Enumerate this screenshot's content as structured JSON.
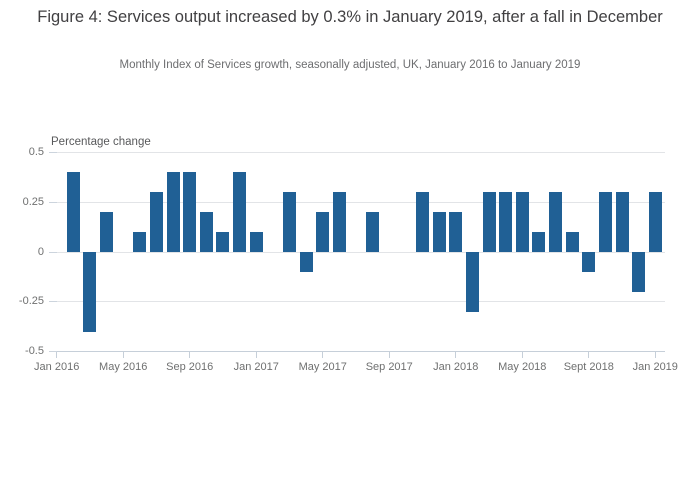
{
  "header": {
    "title": "Figure 4: Services output increased by 0.3% in January 2019, after a fall in December",
    "subtitle": "Monthly Index of Services growth, seasonally adjusted, UK, January 2016 to January 2019"
  },
  "chart_data": {
    "type": "bar",
    "title": "Figure 4: Services output increased by 0.3% in January 2019, after a fall in December",
    "subtitle": "Monthly Index of Services growth, seasonally adjusted, UK, January 2016 to January 2019",
    "ylabel": "Percentage change",
    "xlabel": "",
    "ylim": [
      -0.5,
      0.5
    ],
    "grid": true,
    "legend": "none",
    "bar_color": "#206095",
    "categories": [
      "Jan 2016",
      "Feb 2016",
      "Mar 2016",
      "Apr 2016",
      "May 2016",
      "Jun 2016",
      "Jul 2016",
      "Aug 2016",
      "Sep 2016",
      "Oct 2016",
      "Nov 2016",
      "Dec 2016",
      "Jan 2017",
      "Feb 2017",
      "Mar 2017",
      "Apr 2017",
      "May 2017",
      "Jun 2017",
      "Jul 2017",
      "Aug 2017",
      "Sep 2017",
      "Oct 2017",
      "Nov 2017",
      "Dec 2017",
      "Jan 2018",
      "Feb 2018",
      "Mar 2018",
      "Apr 2018",
      "May 2018",
      "Jun 2018",
      "Jul 2018",
      "Aug 2018",
      "Sep 2018",
      "Oct 2018",
      "Nov 2018",
      "Dec 2018",
      "Jan 2019"
    ],
    "values": [
      0,
      0.4,
      -0.4,
      0.2,
      0,
      0.1,
      0.3,
      0.4,
      0.4,
      0.2,
      0.1,
      0.4,
      0.1,
      0,
      0.3,
      -0.1,
      0.2,
      0.3,
      0,
      0.2,
      0,
      0,
      0.3,
      0.2,
      0.2,
      -0.3,
      0.3,
      0.3,
      0.3,
      0.1,
      0.3,
      0.1,
      -0.1,
      0.3,
      0.3,
      -0.2,
      0.3
    ],
    "x_tick_indices": [
      0,
      4,
      8,
      12,
      16,
      20,
      24,
      28,
      32,
      36
    ],
    "x_tick_labels": [
      "Jan 2016",
      "May 2016",
      "Sep 2016",
      "Jan 2017",
      "May 2017",
      "Sep 2017",
      "Jan 2018",
      "May 2018",
      "Sept 2018",
      "Jan 2019"
    ],
    "y_tick_labels": [
      "0.5",
      "0.25",
      "0",
      "-0.25",
      "-0.5"
    ],
    "y_tick_values": [
      0.5,
      0.25,
      0,
      -0.25,
      -0.5
    ]
  }
}
